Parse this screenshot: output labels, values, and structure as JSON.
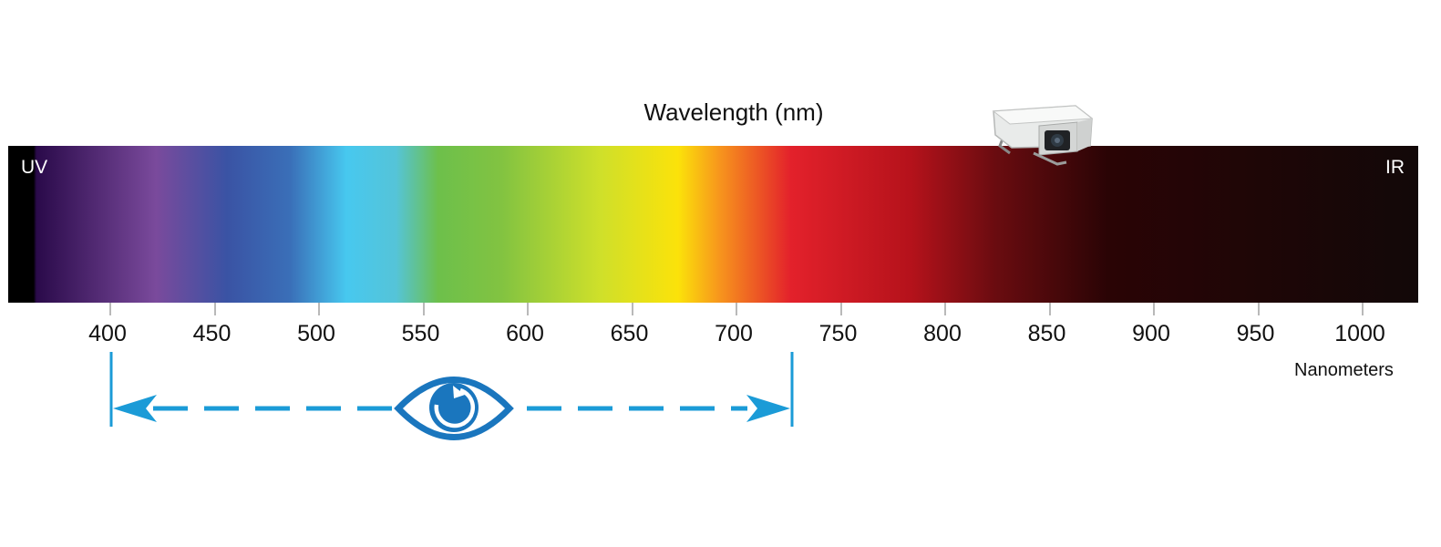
{
  "title": "Wavelength (nm)",
  "band_labels": {
    "left": "UV",
    "right": "IR"
  },
  "axis": {
    "unit_label": "Nanometers",
    "ticks": [
      400,
      450,
      500,
      550,
      600,
      650,
      700,
      750,
      800,
      850,
      900,
      950,
      1000
    ]
  },
  "visible_range_nm": [
    400,
    700
  ],
  "icons": {
    "eye": "eye-icon",
    "camera": "security-camera-icon"
  },
  "colors": {
    "arrow": "#1b9bd7",
    "eye": "#1a76be",
    "spectrum": [
      "#000000",
      "#2a0a4a",
      "#7a4a9c",
      "#3a53a4",
      "#47c8ef",
      "#6dc04b",
      "#cfe02a",
      "#fbe20a",
      "#f7941d",
      "#e3212b",
      "#b5121b",
      "#2a0405",
      "#120808"
    ]
  }
}
